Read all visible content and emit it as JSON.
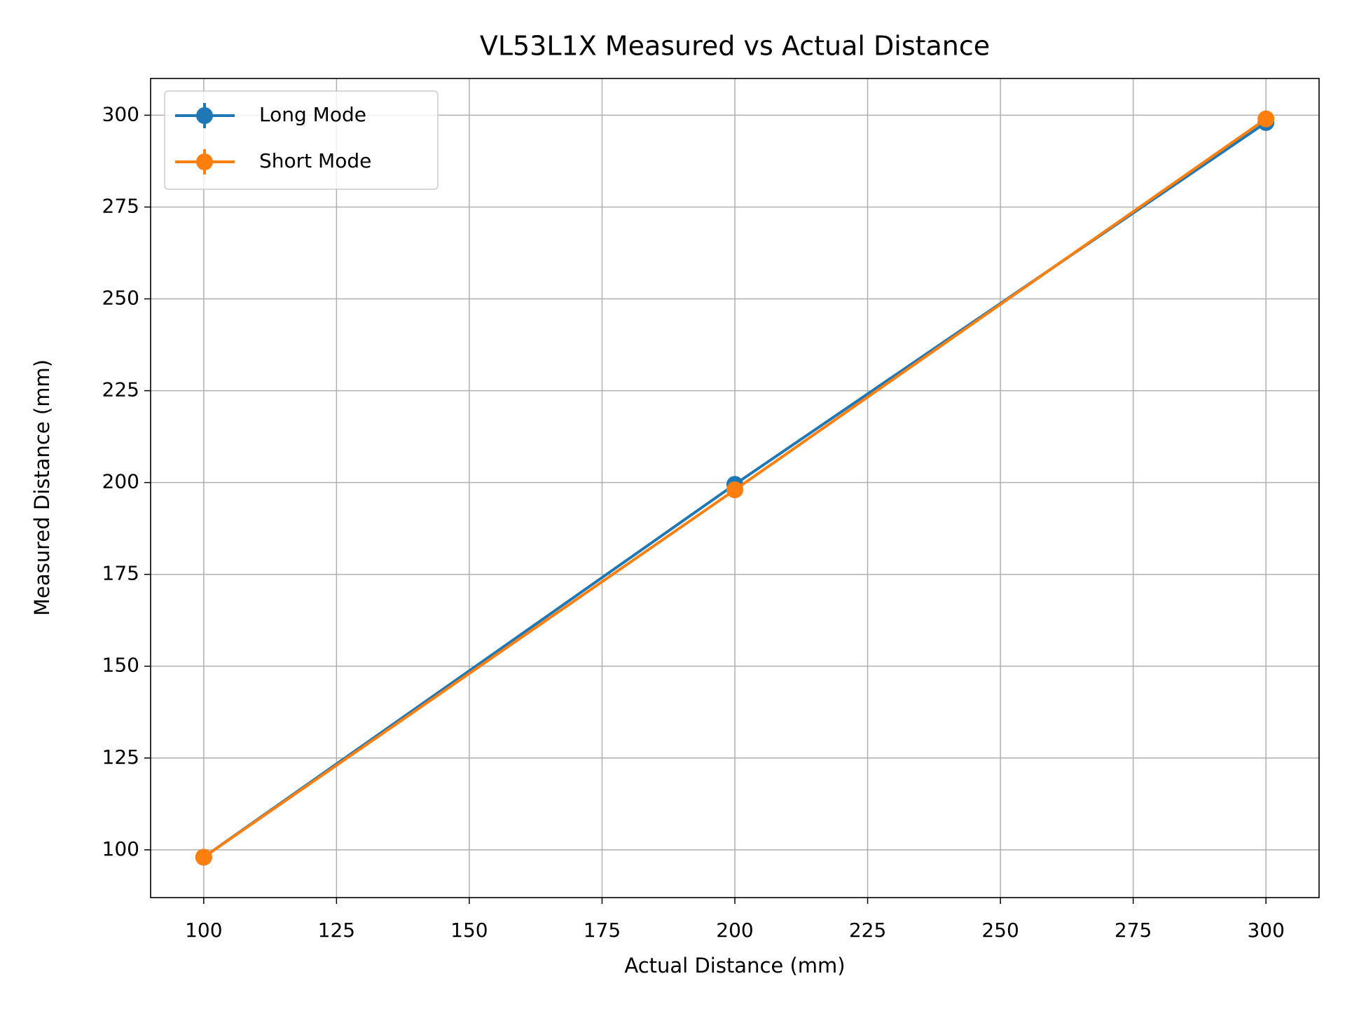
{
  "chart_data": {
    "type": "line",
    "title": "VL53L1X Measured vs Actual Distance",
    "x_label": "Actual Distance (mm)",
    "y_label": "Measured Distance (mm)",
    "x": [
      100,
      200,
      300
    ],
    "series": [
      {
        "name": "Long Mode",
        "color": "#1f77b4",
        "values": [
          98,
          199.5,
          298
        ]
      },
      {
        "name": "Short Mode",
        "color": "#ff7f0e",
        "values": [
          98,
          198,
          299
        ]
      }
    ],
    "xlim": [
      90,
      310
    ],
    "xticks": [
      100,
      125,
      150,
      175,
      200,
      225,
      250,
      275,
      300
    ],
    "ylim": [
      87,
      310
    ],
    "yticks": [
      100,
      125,
      150,
      175,
      200,
      225,
      250,
      275,
      300
    ],
    "grid": true,
    "legend": "upper left"
  }
}
